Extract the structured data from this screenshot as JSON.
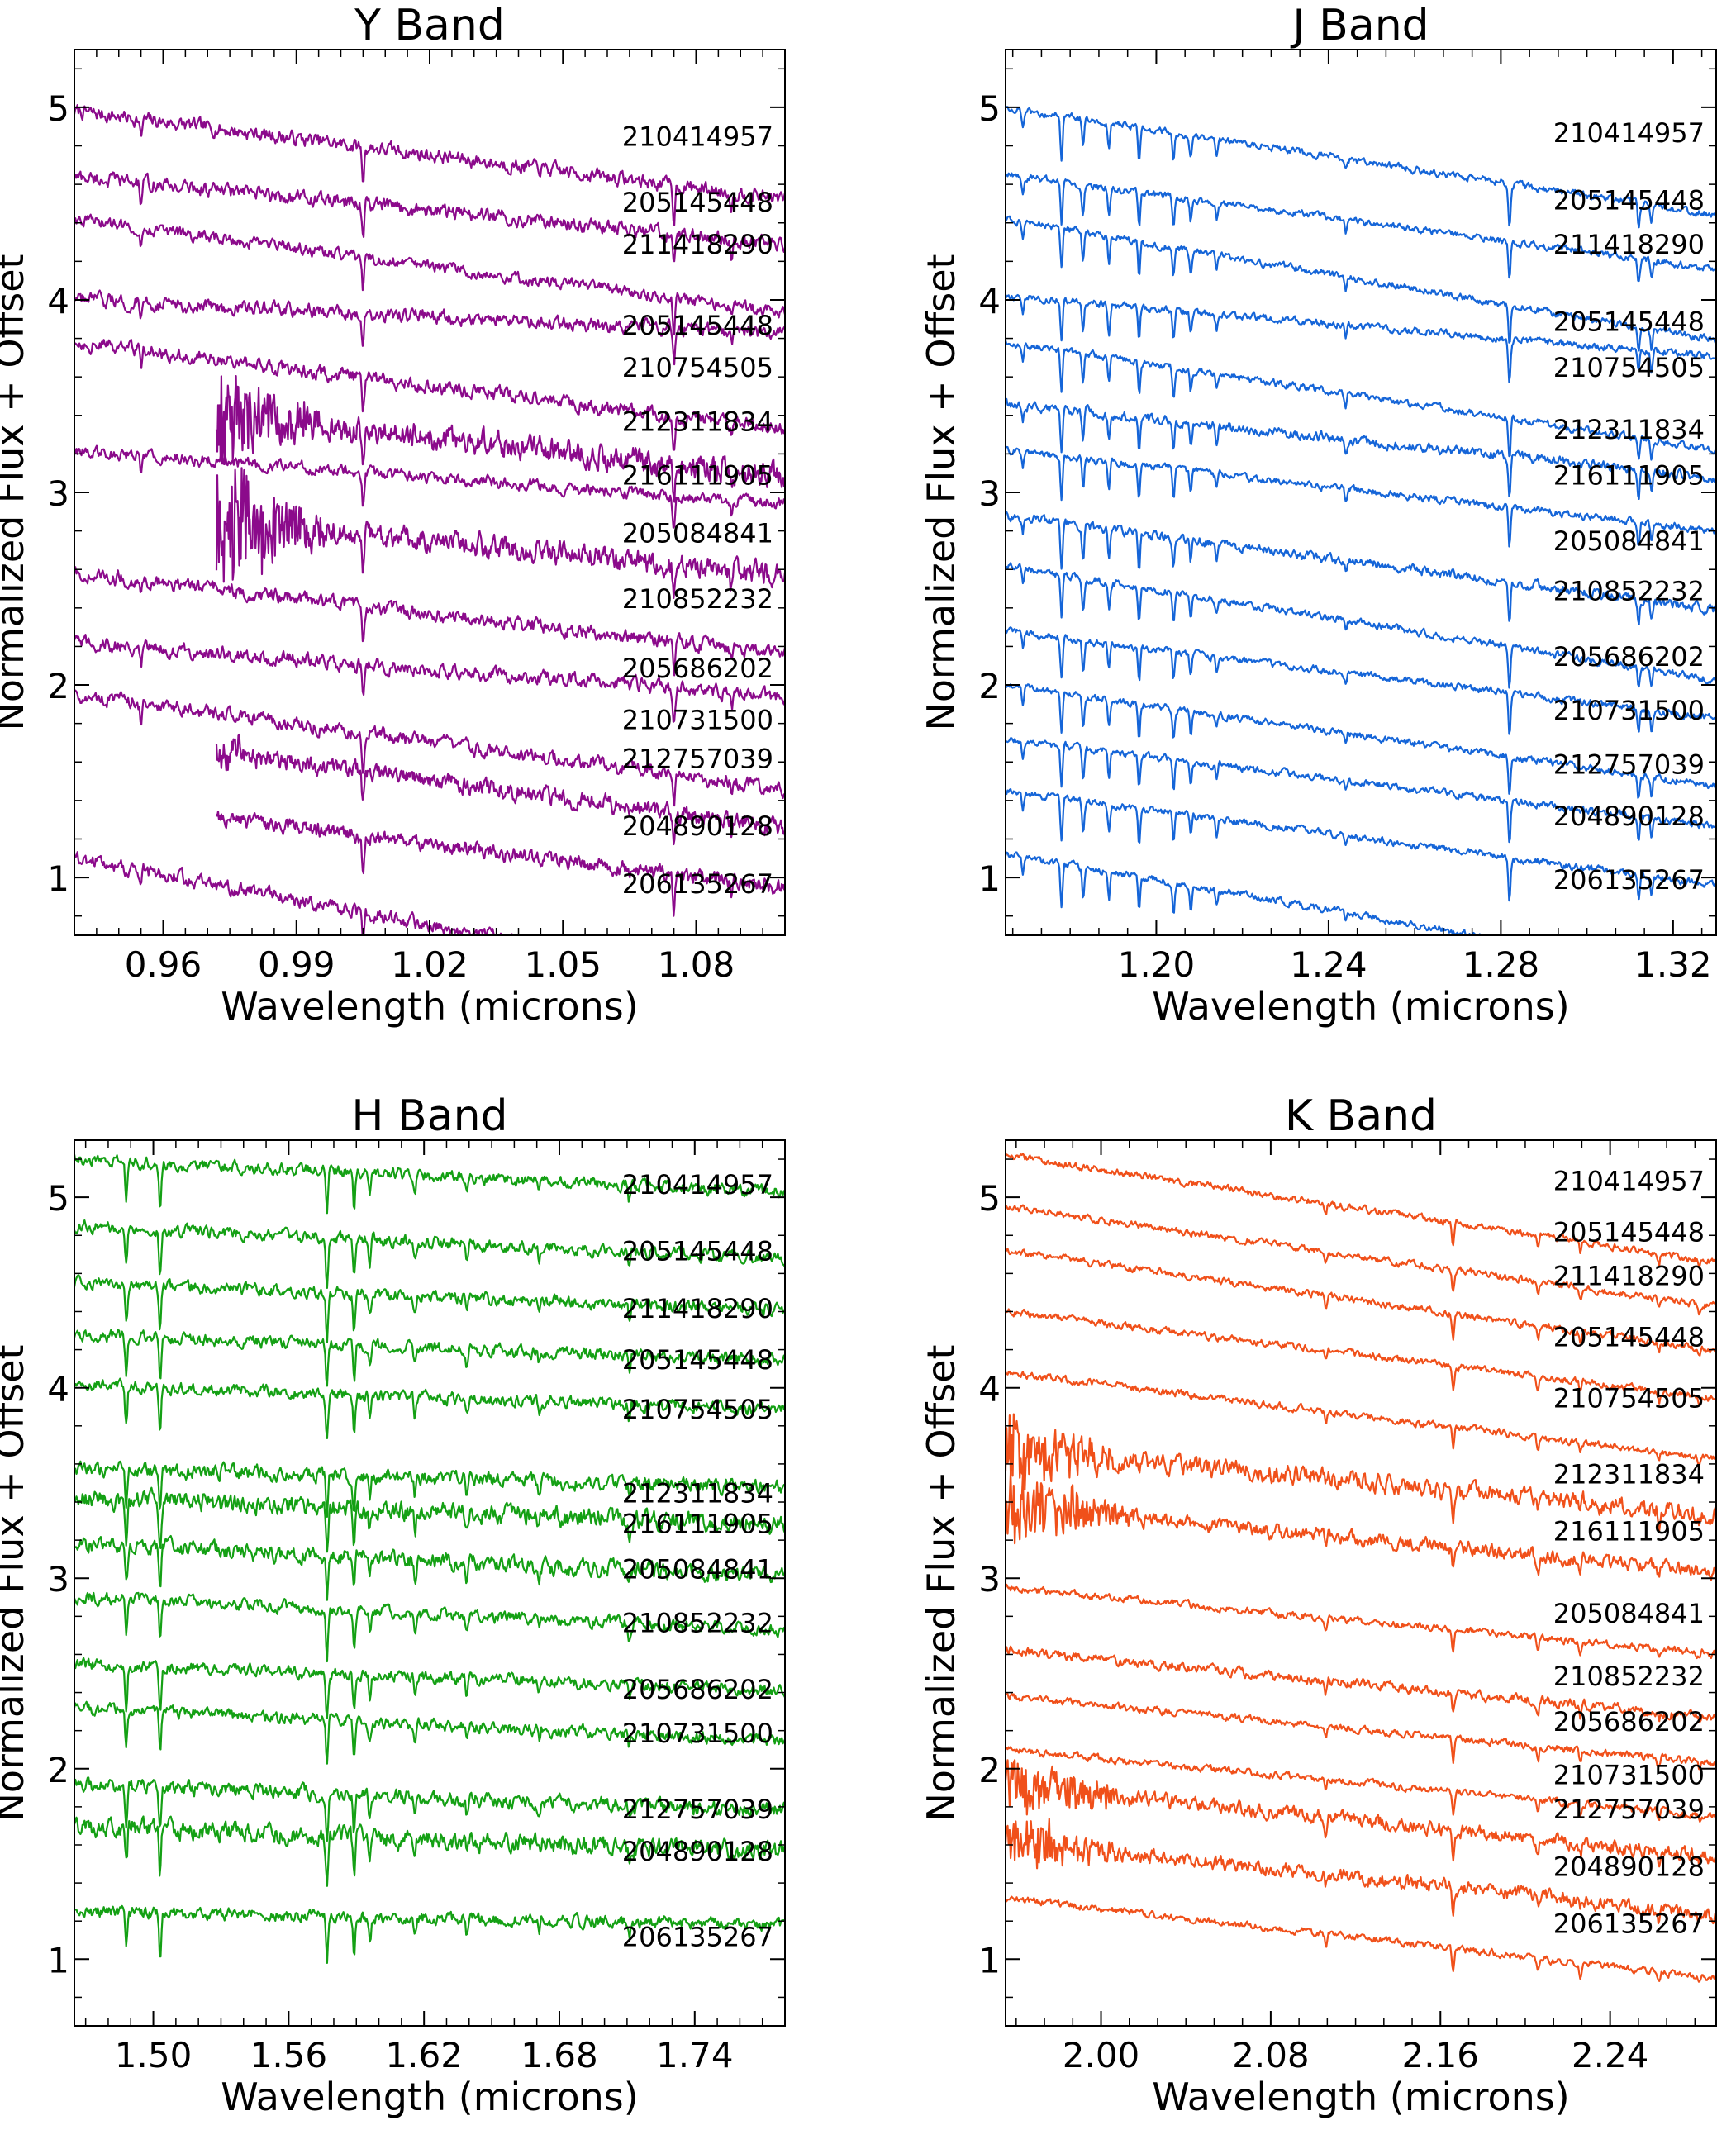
{
  "figure": {
    "ylabel": "Normalized Flux + Offset",
    "xlabel": "Wavelength (microns)"
  },
  "star_ids": [
    "210414957",
    "205145448",
    "211418290",
    "205145448",
    "210754505",
    "212311834",
    "216111905",
    "205084841",
    "210852232",
    "205686202",
    "210731500",
    "212757039",
    "204890128",
    "206135267"
  ],
  "chart_data": [
    {
      "type": "line",
      "title": "Y Band",
      "xlabel": "Wavelength (microns)",
      "ylabel": "Normalized Flux + Offset",
      "color": "#8b0a8b",
      "xlim": [
        0.94,
        1.1
      ],
      "ylim": [
        0.7,
        5.3
      ],
      "xticks": [
        0.96,
        0.99,
        1.02,
        1.05,
        1.08
      ],
      "xtick_labels": [
        "0.96",
        "0.99",
        "1.02",
        "1.05",
        "1.08"
      ],
      "yticks": [
        1,
        2,
        3,
        4,
        5
      ],
      "ytick_labels": [
        "1",
        "2",
        "3",
        "4",
        "5"
      ],
      "lines": [
        {
          "x": [
            0.955,
            1.005,
            1.075,
            1.088
          ],
          "depth": [
            0.1,
            0.12,
            0.1,
            0.08
          ]
        },
        {
          "x": [
            1.005,
            1.075
          ],
          "depth": [
            0.06,
            0.08
          ]
        }
      ],
      "series": [
        {
          "name": "210414957",
          "start": 4.98,
          "slope": 1.3,
          "noise": 0.03,
          "xmin": 0.94
        },
        {
          "name": "205145448",
          "start": 4.64,
          "slope": 1.0,
          "noise": 0.03,
          "xmin": 0.94
        },
        {
          "name": "211418290",
          "start": 4.42,
          "slope": 1.4,
          "noise": 0.025,
          "xmin": 0.94
        },
        {
          "name": "205145448",
          "start": 4.0,
          "slope": 0.5,
          "noise": 0.03,
          "xmin": 0.94
        },
        {
          "name": "210754505",
          "start": 3.78,
          "slope": 1.3,
          "noise": 0.03,
          "xmin": 0.94
        },
        {
          "name": "212311834",
          "start": 3.5,
          "slope": 1.2,
          "noise": 0.05,
          "xmin": 0.972,
          "burst": 0.25,
          "burst_end": 1.0
        },
        {
          "name": "216111905",
          "start": 3.22,
          "slope": 0.8,
          "noise": 0.025,
          "xmin": 0.94
        },
        {
          "name": "205084841",
          "start": 2.92,
          "slope": 1.0,
          "noise": 0.045,
          "xmin": 0.972,
          "burst": 0.32,
          "burst_end": 1.0
        },
        {
          "name": "210852232",
          "start": 2.58,
          "slope": 1.2,
          "noise": 0.03,
          "xmin": 0.94
        },
        {
          "name": "205686202",
          "start": 2.22,
          "slope": 0.8,
          "noise": 0.03,
          "xmin": 0.94
        },
        {
          "name": "210731500",
          "start": 1.95,
          "slope": 1.4,
          "noise": 0.03,
          "xmin": 0.94
        },
        {
          "name": "212757039",
          "start": 1.75,
          "slope": 1.4,
          "noise": 0.035,
          "xmin": 0.972,
          "burst": 0.08,
          "burst_end": 0.985
        },
        {
          "name": "204890128",
          "start": 1.4,
          "slope": 1.3,
          "noise": 0.03,
          "xmin": 0.972
        },
        {
          "name": "206135267",
          "start": 1.1,
          "slope": 2.0,
          "noise": 0.03,
          "xmin": 0.94
        }
      ]
    },
    {
      "type": "line",
      "title": "J Band",
      "xlabel": "Wavelength (microns)",
      "ylabel": "Normalized Flux + Offset",
      "color": "#1565d8",
      "xlim": [
        1.165,
        1.33
      ],
      "ylim": [
        0.7,
        5.3
      ],
      "xticks": [
        1.2,
        1.24,
        1.28,
        1.32
      ],
      "xtick_labels": [
        "1.20",
        "1.24",
        "1.28",
        "1.32"
      ],
      "yticks": [
        1,
        2,
        3,
        4,
        5
      ],
      "ytick_labels": [
        "1",
        "2",
        "3",
        "4",
        "5"
      ],
      "lines": [
        {
          "x": [
            1.169,
            1.178,
            1.183,
            1.189,
            1.196,
            1.204,
            1.208,
            1.214,
            1.244,
            1.282,
            1.312,
            1.315
          ],
          "depth": [
            0.08,
            0.22,
            0.16,
            0.14,
            0.18,
            0.16,
            0.12,
            0.08,
            0.06,
            0.22,
            0.12,
            0.1
          ]
        }
      ],
      "series": [
        {
          "name": "210414957",
          "start": 5.0,
          "slope": 1.6,
          "noise": 0.015,
          "xmin": 1.165
        },
        {
          "name": "205145448",
          "start": 4.65,
          "slope": 1.4,
          "noise": 0.015,
          "xmin": 1.165
        },
        {
          "name": "211418290",
          "start": 4.42,
          "slope": 1.8,
          "noise": 0.015,
          "xmin": 1.165
        },
        {
          "name": "205145448",
          "start": 4.02,
          "slope": 0.9,
          "noise": 0.015,
          "xmin": 1.165
        },
        {
          "name": "210754505",
          "start": 3.78,
          "slope": 1.6,
          "noise": 0.015,
          "xmin": 1.165
        },
        {
          "name": "212311834",
          "start": 3.46,
          "slope": 1.1,
          "noise": 0.02,
          "xmin": 1.165
        },
        {
          "name": "216111905",
          "start": 3.22,
          "slope": 1.2,
          "noise": 0.015,
          "xmin": 1.165
        },
        {
          "name": "205084841",
          "start": 2.88,
          "slope": 1.4,
          "noise": 0.02,
          "xmin": 1.165
        },
        {
          "name": "210852232",
          "start": 2.62,
          "slope": 1.7,
          "noise": 0.015,
          "xmin": 1.165
        },
        {
          "name": "205686202",
          "start": 2.28,
          "slope": 1.3,
          "noise": 0.015,
          "xmin": 1.165
        },
        {
          "name": "210731500",
          "start": 2.0,
          "slope": 1.5,
          "noise": 0.015,
          "xmin": 1.165
        },
        {
          "name": "212757039",
          "start": 1.72,
          "slope": 1.3,
          "noise": 0.015,
          "xmin": 1.165
        },
        {
          "name": "204890128",
          "start": 1.45,
          "slope": 1.4,
          "noise": 0.015,
          "xmin": 1.165
        },
        {
          "name": "206135267",
          "start": 1.12,
          "slope": 1.8,
          "noise": 0.015,
          "xmin": 1.165
        }
      ]
    },
    {
      "type": "line",
      "title": "H Band",
      "xlabel": "Wavelength (microns)",
      "ylabel": "Normalized Flux + Offset",
      "color": "#14a014",
      "xlim": [
        1.465,
        1.78
      ],
      "ylim": [
        0.65,
        5.3
      ],
      "xticks": [
        1.5,
        1.56,
        1.62,
        1.68,
        1.74
      ],
      "xtick_labels": [
        "1.50",
        "1.56",
        "1.62",
        "1.68",
        "1.74"
      ],
      "yticks": [
        1,
        2,
        3,
        4,
        5
      ],
      "ytick_labels": [
        "1",
        "2",
        "3",
        "4",
        "5"
      ],
      "lines": [
        {
          "x": [
            1.488,
            1.503,
            1.577,
            1.589,
            1.596,
            1.616,
            1.639,
            1.671,
            1.711
          ],
          "depth": [
            0.2,
            0.24,
            0.24,
            0.2,
            0.12,
            0.1,
            0.08,
            0.06,
            0.08
          ]
        }
      ],
      "series": [
        {
          "name": "210414957",
          "start": 5.2,
          "slope": 0.5,
          "noise": 0.025,
          "xmin": 1.465
        },
        {
          "name": "205145448",
          "start": 4.85,
          "slope": 0.5,
          "noise": 0.025,
          "xmin": 1.465
        },
        {
          "name": "211418290",
          "start": 4.55,
          "slope": 0.4,
          "noise": 0.025,
          "xmin": 1.465
        },
        {
          "name": "205145448",
          "start": 4.28,
          "slope": 0.4,
          "noise": 0.025,
          "xmin": 1.465
        },
        {
          "name": "210754505",
          "start": 4.02,
          "slope": 0.4,
          "noise": 0.025,
          "xmin": 1.465
        },
        {
          "name": "212311834",
          "start": 3.58,
          "slope": 0.3,
          "noise": 0.03,
          "xmin": 1.465
        },
        {
          "name": "216111905",
          "start": 3.42,
          "slope": 0.4,
          "noise": 0.04,
          "xmin": 1.465
        },
        {
          "name": "205084841",
          "start": 3.18,
          "slope": 0.5,
          "noise": 0.035,
          "xmin": 1.465
        },
        {
          "name": "210852232",
          "start": 2.9,
          "slope": 0.5,
          "noise": 0.025,
          "xmin": 1.465
        },
        {
          "name": "205686202",
          "start": 2.55,
          "slope": 0.4,
          "noise": 0.025,
          "xmin": 1.465
        },
        {
          "name": "210731500",
          "start": 2.32,
          "slope": 0.5,
          "noise": 0.025,
          "xmin": 1.465
        },
        {
          "name": "212757039",
          "start": 1.92,
          "slope": 0.4,
          "noise": 0.03,
          "xmin": 1.465
        },
        {
          "name": "204890128",
          "start": 1.7,
          "slope": 0.4,
          "noise": 0.04,
          "xmin": 1.465
        },
        {
          "name": "206135267",
          "start": 1.25,
          "slope": 0.2,
          "noise": 0.025,
          "xmin": 1.465
        }
      ]
    },
    {
      "type": "line",
      "title": "K Band",
      "xlabel": "Wavelength (microns)",
      "ylabel": "Normalized Flux + Offset",
      "color": "#f0501a",
      "xlim": [
        1.955,
        2.29
      ],
      "ylim": [
        0.65,
        5.3
      ],
      "xticks": [
        2.0,
        2.08,
        2.16,
        2.24
      ],
      "xtick_labels": [
        "2.00",
        "2.08",
        "2.16",
        "2.24"
      ],
      "yticks": [
        1,
        2,
        3,
        4,
        5
      ],
      "ytick_labels": [
        "1",
        "2",
        "3",
        "4",
        "5"
      ],
      "lines": [
        {
          "x": [
            2.106,
            2.166,
            2.206,
            2.226,
            2.263,
            2.282
          ],
          "depth": [
            0.06,
            0.12,
            0.08,
            0.06,
            0.06,
            0.04
          ]
        }
      ],
      "series": [
        {
          "name": "210414957",
          "start": 5.22,
          "slope": 1.6,
          "noise": 0.015,
          "xmin": 1.955
        },
        {
          "name": "205145448",
          "start": 4.95,
          "slope": 1.5,
          "noise": 0.015,
          "xmin": 1.955
        },
        {
          "name": "211418290",
          "start": 4.72,
          "slope": 1.5,
          "noise": 0.015,
          "xmin": 1.955
        },
        {
          "name": "205145448",
          "start": 4.4,
          "slope": 1.3,
          "noise": 0.015,
          "xmin": 1.955
        },
        {
          "name": "210754505",
          "start": 4.08,
          "slope": 1.3,
          "noise": 0.015,
          "xmin": 1.955
        },
        {
          "name": "212311834",
          "start": 3.68,
          "slope": 1.0,
          "noise": 0.04,
          "xmin": 1.955,
          "burst": 0.2,
          "burst_end": 2.015
        },
        {
          "name": "216111905",
          "start": 3.38,
          "slope": 1.0,
          "noise": 0.03,
          "xmin": 1.955,
          "burst": 0.18,
          "burst_end": 2.03
        },
        {
          "name": "205084841",
          "start": 2.95,
          "slope": 1.0,
          "noise": 0.015,
          "xmin": 1.955
        },
        {
          "name": "210852232",
          "start": 2.62,
          "slope": 1.0,
          "noise": 0.02,
          "xmin": 1.955
        },
        {
          "name": "205686202",
          "start": 2.38,
          "slope": 1.0,
          "noise": 0.015,
          "xmin": 1.955
        },
        {
          "name": "210731500",
          "start": 2.1,
          "slope": 1.0,
          "noise": 0.015,
          "xmin": 1.955
        },
        {
          "name": "212757039",
          "start": 1.92,
          "slope": 1.1,
          "noise": 0.03,
          "xmin": 1.955,
          "burst": 0.16,
          "burst_end": 2.02
        },
        {
          "name": "204890128",
          "start": 1.62,
          "slope": 1.1,
          "noise": 0.03,
          "xmin": 1.955,
          "burst": 0.14,
          "burst_end": 2.02
        },
        {
          "name": "206135267",
          "start": 1.32,
          "slope": 1.2,
          "noise": 0.015,
          "xmin": 1.955
        }
      ]
    }
  ]
}
